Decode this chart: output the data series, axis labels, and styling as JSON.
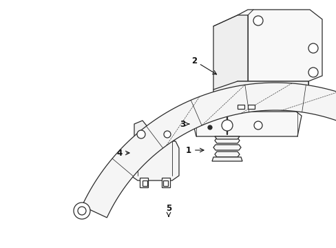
{
  "background_color": "#ffffff",
  "line_color": "#2a2a2a",
  "line_width": 0.9,
  "label_fontsize": 8.5,
  "label_color": "#111111",
  "fig_width": 4.89,
  "fig_height": 3.6,
  "dpi": 100
}
